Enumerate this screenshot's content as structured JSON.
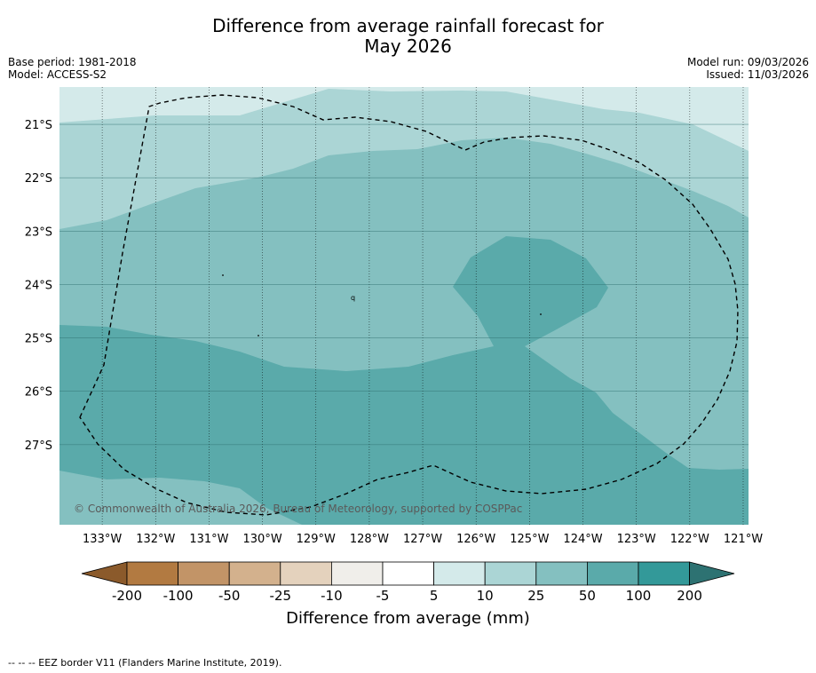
{
  "title": {
    "line1": "Difference from average rainfall forecast for",
    "line2": "May 2026"
  },
  "meta": {
    "base_period": "Base period: 1981-2018",
    "model": "Model: ACCESS-S2",
    "model_run": "Model run: 09/03/2026",
    "issued": "Issued: 11/03/2026"
  },
  "map": {
    "lat_labels": [
      "21°S",
      "22°S",
      "23°S",
      "24°S",
      "25°S",
      "26°S",
      "27°S"
    ],
    "lon_labels": [
      "133°W",
      "132°W",
      "131°W",
      "130°W",
      "129°W",
      "128°W",
      "127°W",
      "126°W",
      "125°W",
      "124°W",
      "123°W",
      "122°W",
      "121°W"
    ],
    "lat_range": [
      -28.5,
      -20.3
    ],
    "lon_range": [
      -133.8,
      -120.9
    ],
    "copyright": "© Commonwealth of Australia 2026, Bureau of Meteorology, supported by COSPPac"
  },
  "colorbar": {
    "labels": [
      "-200",
      "-100",
      "-50",
      "-25",
      "-10",
      "-5",
      "5",
      "10",
      "25",
      "50",
      "100",
      "200"
    ],
    "colors": [
      "#b27a41",
      "#c29467",
      "#d3b18d",
      "#e4d2bd",
      "#f0eeea",
      "#ffffff",
      "#d4eaea",
      "#abd5d5",
      "#84c0c0",
      "#5aaaaa",
      "#339999"
    ],
    "extend_low_color": "#8b5a2b",
    "extend_high_color": "#2d7272",
    "title": "Difference from average (mm)"
  },
  "footnote": "--  --  -- EEZ border V11 (Flanders Marine Institute, 2019)."
}
